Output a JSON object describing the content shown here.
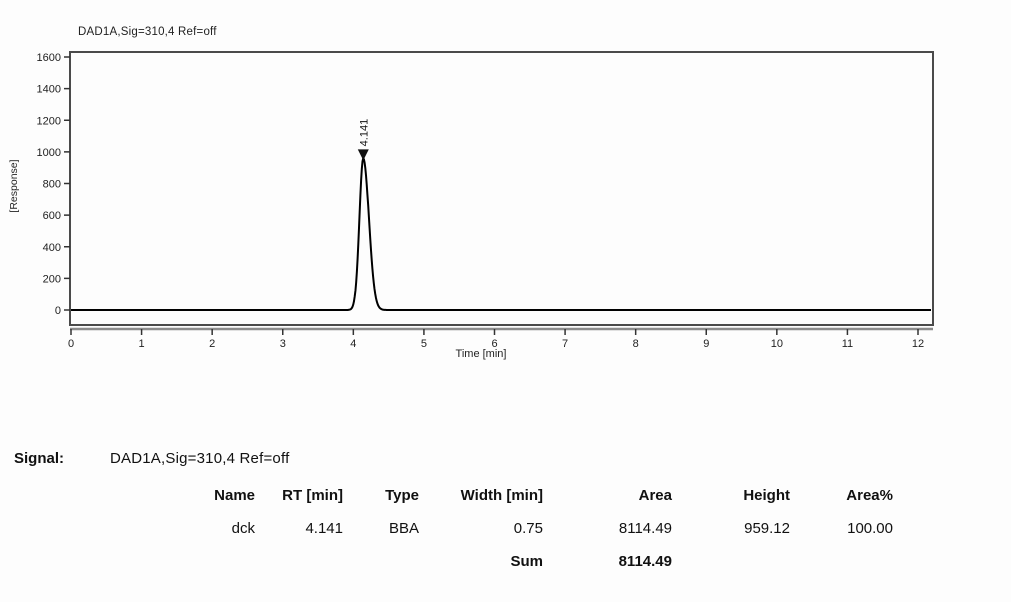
{
  "chart": {
    "title": "DAD1A,Sig=310,4  Ref=off",
    "y_axis_label": "[Response]",
    "x_axis_label": "Time [min]"
  },
  "chart_data": {
    "type": "line",
    "title": "DAD1A,Sig=310,4  Ref=off",
    "xlabel": "Time [min]",
    "ylabel": "[Response]",
    "xlim": [
      0,
      12.2
    ],
    "ylim": [
      -80,
      1630
    ],
    "x_ticks": [
      0,
      1,
      2,
      3,
      4,
      5,
      6,
      7,
      8,
      9,
      10,
      11,
      12
    ],
    "y_ticks": [
      0,
      200,
      400,
      600,
      800,
      1000,
      1200,
      1400,
      1600
    ],
    "grid": false,
    "legend": "none",
    "baseline_value": 0,
    "peaks": [
      {
        "label": "4.141",
        "rt": 4.141,
        "height": 959.12,
        "area": 8114.49,
        "sigma_left": 0.055,
        "sigma_right": 0.08
      }
    ],
    "line_color": "#000000",
    "frame_color": "#4a4a4a",
    "axis_color": "#8c8c8c",
    "tick_color": "#333333",
    "tick_label_color": "#222222"
  },
  "signal_block": {
    "label": "Signal:",
    "value": "DAD1A,Sig=310,4  Ref=off"
  },
  "peak_table": {
    "headers": [
      "Name",
      "RT [min]",
      "Type",
      "Width [min]",
      "Area",
      "Height",
      "Area%"
    ],
    "rows": [
      [
        "dck",
        "4.141",
        "BBA",
        "0.75",
        "8114.49",
        "959.12",
        "100.00"
      ]
    ],
    "sum_label": "Sum",
    "sum_area": "8114.49"
  }
}
